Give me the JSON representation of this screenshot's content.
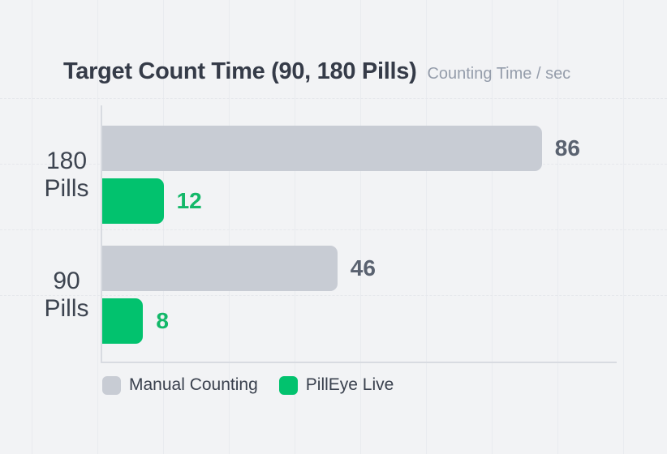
{
  "header": {
    "title": "Target Count Time (90, 180 Pills)",
    "subtitle": "Counting Time / sec"
  },
  "chart_data": {
    "type": "bar",
    "orientation": "horizontal",
    "title": "Target Count Time (90, 180 Pills)",
    "subtitle": "Counting Time / sec",
    "value_unit": "sec",
    "categories": [
      "180 Pills",
      "90 Pills"
    ],
    "series": [
      {
        "name": "Manual Counting",
        "color": "#c8ccd4",
        "values": [
          86,
          46
        ]
      },
      {
        "name": "PillEye Live",
        "color": "#02c26e",
        "values": [
          12,
          8
        ]
      }
    ],
    "xlim": [
      0,
      100
    ],
    "grid": true,
    "legend_position": "bottom"
  },
  "colors": {
    "background": "#f2f3f5",
    "grid_line": "#e9ebef",
    "axis_line": "#d8dbe1",
    "manual_bar": "#c8ccd4",
    "pilleye_bar": "#02c26e",
    "title_text": "#353b48",
    "subtitle_text": "#959dab",
    "category_text": "#3d4450",
    "value_manual_text": "#5a6270",
    "value_pilleye_text": "#13b869",
    "legend_text": "#3a414e"
  }
}
